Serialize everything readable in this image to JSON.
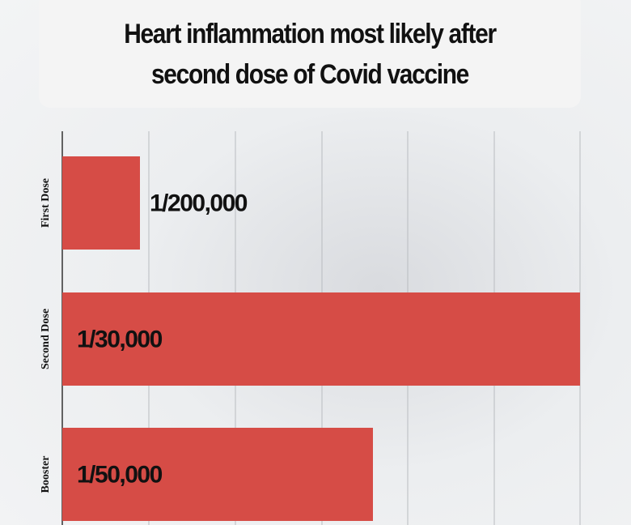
{
  "chart_data": {
    "type": "bar",
    "orientation": "horizontal",
    "title": "Heart inflammation most likely after second dose of Covid vaccine",
    "categories": [
      "First Dose",
      "Second Dose",
      "Booster"
    ],
    "values": [
      5,
      33.3333,
      20
    ],
    "value_labels": [
      "1/200,000",
      "1/30,000",
      "1/50,000"
    ],
    "color": "#d64c46",
    "xlim": [
      0,
      33.3333
    ]
  }
}
